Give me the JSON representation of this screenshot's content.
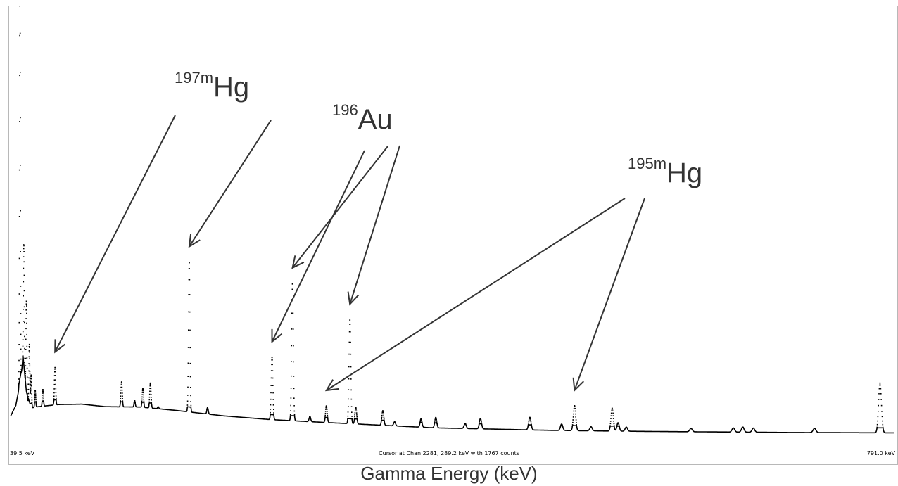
{
  "chart_data": {
    "type": "line",
    "xlabel": "Gamma Energy (keV)",
    "x_min_label": "39.5 keV",
    "x_max_label": "791.0 keV",
    "xlim": [
      39.5,
      791.0
    ],
    "status": "Cursor at Chan 2281, 289.2 keV with 1767 counts",
    "ylim": [
      0,
      1
    ],
    "continuum": {
      "x": [
        39.5,
        44,
        48,
        50,
        53,
        56,
        60,
        80,
        100,
        120,
        150,
        180,
        220,
        260,
        300,
        350,
        400,
        450,
        500,
        560,
        600,
        650,
        700,
        791
      ],
      "y": [
        0.004,
        0.03,
        0.09,
        0.14,
        0.05,
        0.022,
        0.026,
        0.032,
        0.033,
        0.027,
        0.026,
        0.018,
        0.005,
        -0.004,
        -0.01,
        -0.017,
        -0.024,
        -0.027,
        -0.03,
        -0.032,
        -0.033,
        -0.034,
        -0.035,
        -0.036
      ]
    },
    "peaks": [
      {
        "x": 47.5,
        "height": 0.95,
        "width": 0.35
      },
      {
        "x": 50.8,
        "height": 0.3,
        "width": 0.4
      },
      {
        "x": 53.0,
        "height": 0.23,
        "width": 0.4
      },
      {
        "x": 55.5,
        "height": 0.15,
        "width": 0.4
      },
      {
        "x": 57.0,
        "height": 0.08,
        "width": 0.4
      },
      {
        "x": 60.5,
        "height": 0.04,
        "width": 0.4
      },
      {
        "x": 67.0,
        "height": 0.04,
        "width": 0.45
      },
      {
        "x": 77.3,
        "height": 0.09,
        "width": 0.5
      },
      {
        "x": 133.9,
        "height": 0.06,
        "width": 0.55
      },
      {
        "x": 145.0,
        "height": 0.015,
        "width": 0.5
      },
      {
        "x": 152.0,
        "height": 0.045,
        "width": 0.55
      },
      {
        "x": 158.4,
        "height": 0.06,
        "width": 0.55
      },
      {
        "x": 165.0,
        "height": 0.005,
        "width": 0.5
      },
      {
        "x": 191.4,
        "height": 0.36,
        "width": 0.6
      },
      {
        "x": 207.0,
        "height": 0.015,
        "width": 0.6
      },
      {
        "x": 261.8,
        "height": 0.15,
        "width": 0.7
      },
      {
        "x": 279.2,
        "height": 0.33,
        "width": 0.7
      },
      {
        "x": 294.0,
        "height": 0.012,
        "width": 0.7
      },
      {
        "x": 308.0,
        "height": 0.04,
        "width": 0.7
      },
      {
        "x": 328.0,
        "height": 0.25,
        "width": 0.75
      },
      {
        "x": 333.0,
        "height": 0.04,
        "width": 0.75
      },
      {
        "x": 356.0,
        "height": 0.035,
        "width": 0.8
      },
      {
        "x": 366.0,
        "height": 0.01,
        "width": 0.8
      },
      {
        "x": 388.5,
        "height": 0.02,
        "width": 0.8
      },
      {
        "x": 401.0,
        "height": 0.025,
        "width": 0.85
      },
      {
        "x": 426.0,
        "height": 0.012,
        "width": 0.9
      },
      {
        "x": 439.0,
        "height": 0.025,
        "width": 0.9
      },
      {
        "x": 481.0,
        "height": 0.03,
        "width": 1.0
      },
      {
        "x": 508.0,
        "height": 0.015,
        "width": 1.0
      },
      {
        "x": 519.0,
        "height": 0.06,
        "width": 1.0
      },
      {
        "x": 533.0,
        "height": 0.01,
        "width": 1.0
      },
      {
        "x": 551.0,
        "height": 0.055,
        "width": 1.0
      },
      {
        "x": 556.0,
        "height": 0.02,
        "width": 1.0
      },
      {
        "x": 563.0,
        "height": 0.01,
        "width": 1.0
      },
      {
        "x": 618.0,
        "height": 0.008,
        "width": 1.1
      },
      {
        "x": 654.0,
        "height": 0.01,
        "width": 1.1
      },
      {
        "x": 662.0,
        "height": 0.012,
        "width": 1.1
      },
      {
        "x": 671.0,
        "height": 0.01,
        "width": 1.1
      },
      {
        "x": 723.0,
        "height": 0.01,
        "width": 1.2
      },
      {
        "x": 778.7,
        "height": 0.12,
        "width": 1.2
      }
    ],
    "annotations": [
      {
        "mass": "197m",
        "element": "Hg",
        "points_to": [
          77.3,
          191.4
        ]
      },
      {
        "mass": "196",
        "element": "Au",
        "points_to": [
          261.8,
          279.2,
          328.0
        ]
      },
      {
        "mass": "195m",
        "element": "Hg",
        "points_to": [
          308.0,
          519.0
        ]
      }
    ]
  }
}
